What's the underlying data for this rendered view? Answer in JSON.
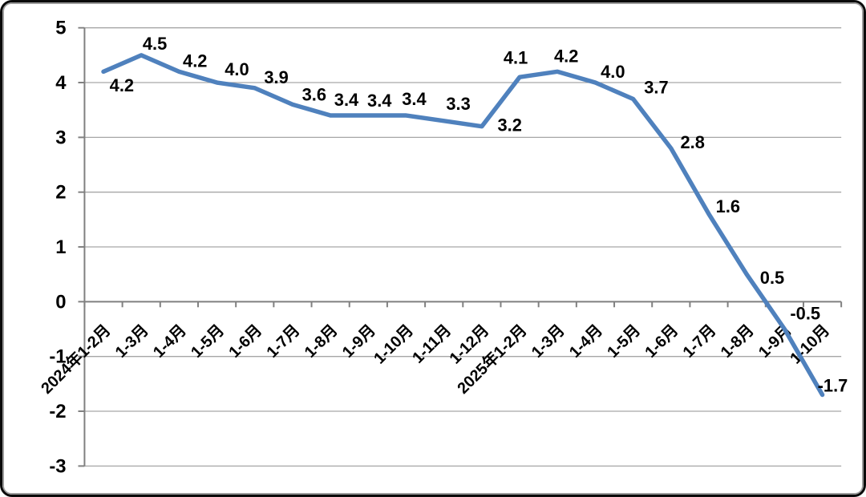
{
  "chart_data": {
    "type": "line",
    "title": "",
    "xlabel": "",
    "ylabel": "",
    "categories": [
      "2024年1-2月",
      "1-3月",
      "1-4月",
      "1-5月",
      "1-6月",
      "1-7月",
      "1-8月",
      "1-9月",
      "1-10月",
      "1-11月",
      "1-12月",
      "2025年1-2月",
      "1-3月",
      "1-4月",
      "1-5月",
      "1-6月",
      "1-7月",
      "1-8月",
      "1-9月",
      "1-10月"
    ],
    "values": [
      4.2,
      4.5,
      4.2,
      4.0,
      3.9,
      3.6,
      3.4,
      3.4,
      3.4,
      3.3,
      3.2,
      4.1,
      4.2,
      4.0,
      3.7,
      2.8,
      1.6,
      0.5,
      -0.5,
      -1.7
    ],
    "data_labels": [
      "4.2",
      "4.5",
      "4.2",
      "4.0",
      "3.9",
      "3.6",
      "3.4",
      "3.4",
      "3.4",
      "3.3",
      "3.2",
      "4.1",
      "4.2",
      "4.0",
      "3.7",
      "2.8",
      "1.6",
      "0.5",
      "-0.5",
      "-1.7"
    ],
    "y_ticks": [
      5,
      4,
      3,
      2,
      1,
      0,
      -1,
      -2,
      -3
    ],
    "ylim": [
      -3,
      5
    ],
    "grid": true,
    "legend": false,
    "x_tick_label_rotation_deg": -45,
    "line_color": "#4F81BD",
    "gridline_color": "#A6A6A6",
    "axis_color": "#808080",
    "label_color": "#000000"
  }
}
